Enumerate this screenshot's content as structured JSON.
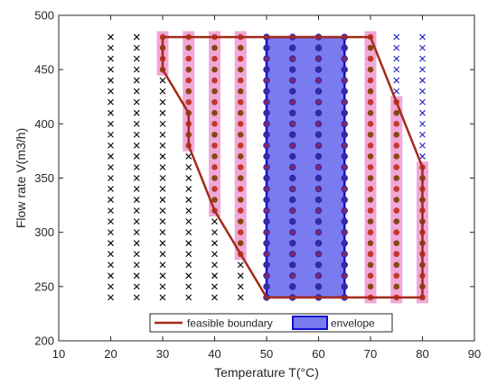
{
  "chart_data": {
    "type": "scatter",
    "xlabel": "Temperature T(°C)",
    "ylabel": "Flow rate V(m3/h)",
    "xlim": [
      10,
      90
    ],
    "ylim": [
      200,
      500
    ],
    "xticks": [
      10,
      20,
      30,
      40,
      50,
      60,
      70,
      80,
      90
    ],
    "yticks": [
      200,
      250,
      300,
      350,
      400,
      450,
      500
    ],
    "grid": false,
    "temperatures": [
      20,
      25,
      30,
      35,
      40,
      45,
      50,
      55,
      60,
      65,
      70,
      75,
      80
    ],
    "flow_range": [
      240,
      480
    ],
    "flow_step": 10,
    "feasible_boundary": {
      "name": "feasible boundary",
      "color": "#a52a1a",
      "points": [
        [
          30,
          480
        ],
        [
          70,
          480
        ],
        [
          80,
          360
        ],
        [
          80,
          240
        ],
        [
          50,
          240
        ],
        [
          40,
          320
        ],
        [
          35,
          380
        ],
        [
          35,
          410
        ],
        [
          30,
          450
        ],
        [
          30,
          480
        ]
      ]
    },
    "envelope": {
      "name": "envelope",
      "fill": "#7b7bf0",
      "edge": "#1010d0",
      "points": [
        [
          50,
          240
        ],
        [
          65,
          240
        ],
        [
          65,
          480
        ],
        [
          50,
          480
        ]
      ]
    },
    "marker_styles": {
      "infeasible": {
        "marker": "x",
        "color": "#000000"
      },
      "infeasible_high_temp": {
        "marker": "x",
        "color": "#2020c0"
      },
      "feasible": {
        "marker": "circle",
        "colors": [
          "#c0392b",
          "#8b4513"
        ],
        "halo": "#f0a8d8"
      },
      "envelope_point": {
        "marker": "circle",
        "colors": [
          "#7a2a6a",
          "#3a2aa0"
        ],
        "edge": "#2020c0"
      }
    },
    "legend": {
      "placement": "bottom-center",
      "entries": [
        "feasible boundary",
        "envelope"
      ]
    }
  }
}
